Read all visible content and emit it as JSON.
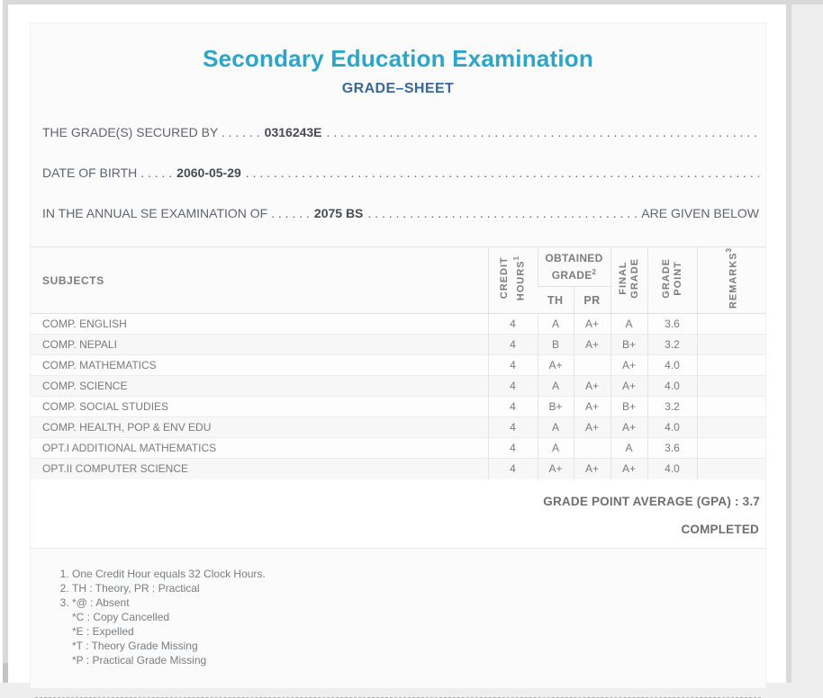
{
  "page": {
    "title": "Secondary Education Examination",
    "subtitle": "GRADE–SHEET"
  },
  "student_lines": {
    "leader_dots": ". . . . . . . . . . . . . . . . . . . . . . . . . . . . . . . . . . . . . . . . . . . . . . . . . . . . . . . . . . . . . . . . . . . . . . . . . . . . . . . . . . . . . . . . . . . . . . . . . . . . . . . . . . . . . . . . . . . . . . . . . . . . . . . . . . . .",
    "line1": {
      "label": "THE GRADE(S) SECURED BY . . . . . .",
      "value": "0316243E"
    },
    "line2": {
      "label": "DATE OF BIRTH . . . . .",
      "value": "2060-05-29"
    },
    "line3": {
      "label": "IN THE ANNUAL SE EXAMINATION OF . . . . . .",
      "value": "2075 BS",
      "suffix": "ARE GIVEN BELOW"
    }
  },
  "table": {
    "headers": {
      "subjects": "SUBJECTS",
      "credit_hours": {
        "line1": "CREDIT",
        "line2": "HOURS",
        "sup": "1"
      },
      "obtained_grade": {
        "line1": "OBTAINED",
        "line2": "GRADE",
        "sup": "2"
      },
      "th": "TH",
      "pr": "PR",
      "final_grade": {
        "line1": "FINAL",
        "line2": "GRADE"
      },
      "grade_point": {
        "line1": "GRADE",
        "line2": "POINT"
      },
      "remarks": {
        "line1": "REMARKS",
        "sup": "3"
      }
    },
    "rows": [
      {
        "subject": "COMP. ENGLISH",
        "credit": "4",
        "th": "A",
        "pr": "A+",
        "final": "A",
        "gp": "3.6",
        "remarks": ""
      },
      {
        "subject": "COMP. NEPALI",
        "credit": "4",
        "th": "B",
        "pr": "A+",
        "final": "B+",
        "gp": "3.2",
        "remarks": ""
      },
      {
        "subject": "COMP. MATHEMATICS",
        "credit": "4",
        "th": "A+",
        "pr": "",
        "final": "A+",
        "gp": "4.0",
        "remarks": ""
      },
      {
        "subject": "COMP. SCIENCE",
        "credit": "4",
        "th": "A",
        "pr": "A+",
        "final": "A+",
        "gp": "4.0",
        "remarks": ""
      },
      {
        "subject": "COMP. SOCIAL STUDIES",
        "credit": "4",
        "th": "B+",
        "pr": "A+",
        "final": "B+",
        "gp": "3.2",
        "remarks": ""
      },
      {
        "subject": "COMP. HEALTH, POP & ENV EDU",
        "credit": "4",
        "th": "A",
        "pr": "A+",
        "final": "A+",
        "gp": "4.0",
        "remarks": ""
      },
      {
        "subject": "OPT.I ADDITIONAL MATHEMATICS",
        "credit": "4",
        "th": "A",
        "pr": "",
        "final": "A",
        "gp": "3.6",
        "remarks": ""
      },
      {
        "subject": "OPT.II COMPUTER SCIENCE",
        "credit": "4",
        "th": "A+",
        "pr": "A+",
        "final": "A+",
        "gp": "4.0",
        "remarks": ""
      }
    ]
  },
  "summary": {
    "gpa_label": "GRADE POINT AVERAGE (GPA) :",
    "gpa_value": "3.7",
    "status": "COMPLETED"
  },
  "footnotes": {
    "items": [
      {
        "lines": [
          "One Credit Hour equals 32 Clock Hours."
        ]
      },
      {
        "lines": [
          "TH : Theory, PR : Practical"
        ]
      },
      {
        "lines": [
          "*@ : Absent",
          "*C : Copy Cancelled",
          "*E : Expelled",
          "*T : Theory Grade Missing",
          "*P : Practical Grade Missing"
        ]
      }
    ]
  },
  "colors": {
    "title_accent": "#2ba6cb",
    "subtitle_accent": "#35699d",
    "chrome_gray": "#d9d9d9",
    "card_bg": "#fbfbfb"
  }
}
